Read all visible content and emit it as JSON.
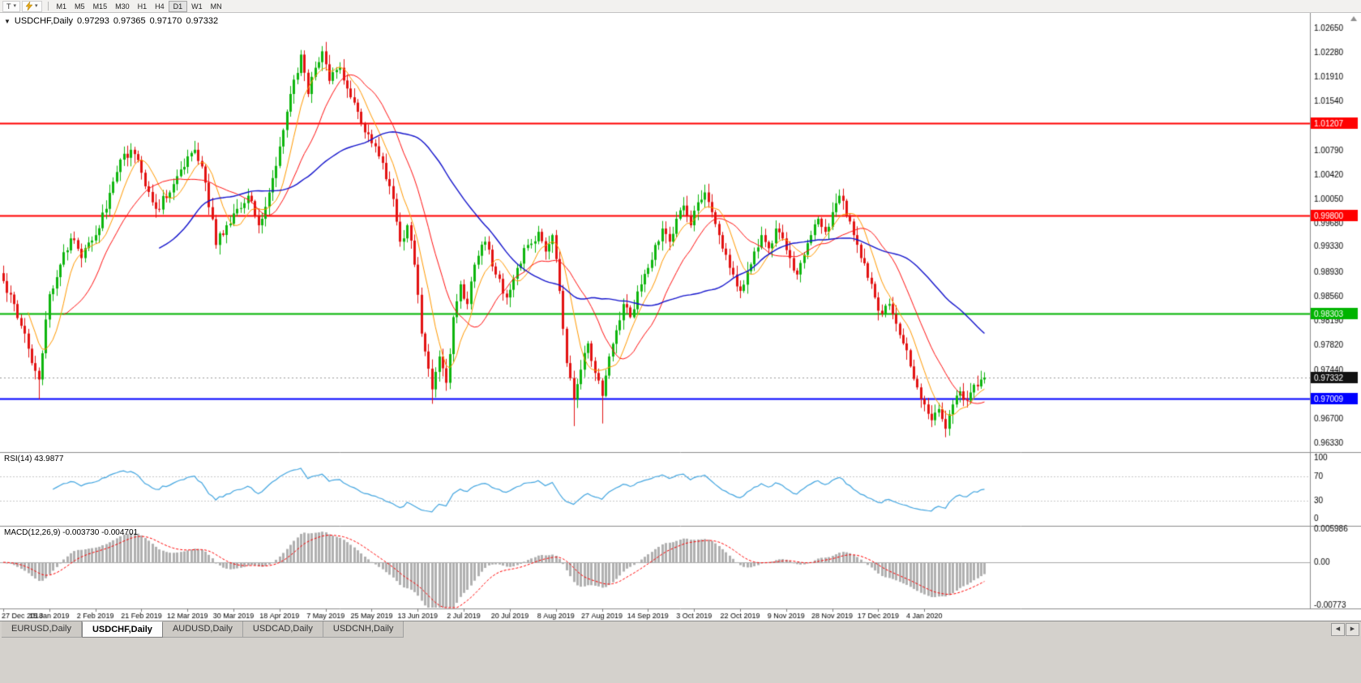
{
  "toolbar": {
    "chart_tool_label": "T",
    "caret": "▾",
    "timeframes": [
      "M1",
      "M5",
      "M15",
      "M30",
      "H1",
      "H4",
      "D1",
      "W1",
      "MN"
    ],
    "active_timeframe": "D1"
  },
  "chart_header": {
    "collapse_arrow": "▼",
    "symbol": "USDCHF,Daily",
    "open": "0.97293",
    "high": "0.97365",
    "low": "0.97170",
    "close": "0.97332"
  },
  "tabs": {
    "items": [
      "EURUSD,Daily",
      "USDCHF,Daily",
      "AUDUSD,Daily",
      "USDCAD,Daily",
      "USDCNH,Daily"
    ],
    "active": "USDCHF,Daily",
    "scroll_left": "◀",
    "scroll_right": "▶"
  },
  "chart_data": {
    "type": "candlestick",
    "symbol": "USDCHF",
    "timeframe": "Daily",
    "num_candles": 278,
    "x_tick_interval": 13,
    "x_tick_labels": [
      "27 Dec 2018",
      "15 Jan 2019",
      "2 Feb 2019",
      "21 Feb 2019",
      "12 Mar 2019",
      "30 Mar 2019",
      "18 Apr 2019",
      "7 May 2019",
      "25 May 2019",
      "13 Jun 2019",
      "2 Jul 2019",
      "20 Jul 2019",
      "8 Aug 2019",
      "27 Aug 2019",
      "14 Sep 2019",
      "3 Oct 2019",
      "22 Oct 2019",
      "9 Nov 2019",
      "28 Nov 2019",
      "17 Dec 2019",
      "4 Jan 2020"
    ],
    "y_axis": {
      "min": 0.9633,
      "max": 1.0265,
      "tick_labels": [
        "1.02650",
        "1.02280",
        "1.01910",
        "1.01540",
        "1.00790",
        "1.00420",
        "1.00050",
        "0.99680",
        "0.99330",
        "0.98930",
        "0.98560",
        "0.98190",
        "0.97820",
        "0.97440",
        "0.96700",
        "0.96330"
      ]
    },
    "candle_colors": {
      "up": "#0eb50e",
      "down": "#e21212"
    },
    "price_anchors": [
      [
        0,
        0.988
      ],
      [
        3,
        0.9845
      ],
      [
        6,
        0.98
      ],
      [
        8,
        0.9755
      ],
      [
        10,
        0.973
      ],
      [
        11,
        0.977
      ],
      [
        13,
        0.986
      ],
      [
        16,
        0.9905
      ],
      [
        19,
        0.9945
      ],
      [
        22,
        0.9915
      ],
      [
        26,
        0.995
      ],
      [
        29,
        0.999
      ],
      [
        33,
        1.0065
      ],
      [
        36,
        1.008
      ],
      [
        39,
        1.0045
      ],
      [
        43,
        0.999
      ],
      [
        47,
        1.0015
      ],
      [
        52,
        1.007
      ],
      [
        54,
        1.008
      ],
      [
        57,
        1.003
      ],
      [
        60,
        0.9935
      ],
      [
        63,
        0.9965
      ],
      [
        66,
        0.999
      ],
      [
        69,
        1.001
      ],
      [
        72,
        0.9965
      ],
      [
        75,
        1.0015
      ],
      [
        78,
        1.0085
      ],
      [
        81,
        1.0165
      ],
      [
        84,
        1.0225
      ],
      [
        86,
        1.0165
      ],
      [
        88,
        1.0205
      ],
      [
        90,
        1.023
      ],
      [
        92,
        1.0185
      ],
      [
        95,
        1.0205
      ],
      [
        98,
        1.016
      ],
      [
        101,
        1.012
      ],
      [
        104,
        1.009
      ],
      [
        107,
        1.006
      ],
      [
        110,
        1.0005
      ],
      [
        112,
        0.994
      ],
      [
        114,
        0.9965
      ],
      [
        116,
        0.9905
      ],
      [
        118,
        0.98
      ],
      [
        121,
        0.9715
      ],
      [
        123,
        0.9765
      ],
      [
        125,
        0.9725
      ],
      [
        127,
        0.9825
      ],
      [
        129,
        0.9875
      ],
      [
        131,
        0.9845
      ],
      [
        133,
        0.9905
      ],
      [
        136,
        0.994
      ],
      [
        139,
        0.989
      ],
      [
        142,
        0.9855
      ],
      [
        145,
        0.99
      ],
      [
        148,
        0.9935
      ],
      [
        151,
        0.9955
      ],
      [
        153,
        0.9925
      ],
      [
        155,
        0.995
      ],
      [
        157,
        0.9865
      ],
      [
        159,
        0.9755
      ],
      [
        161,
        0.97
      ],
      [
        163,
        0.9745
      ],
      [
        165,
        0.9785
      ],
      [
        167,
        0.974
      ],
      [
        169,
        0.9705
      ],
      [
        171,
        0.9765
      ],
      [
        173,
        0.9805
      ],
      [
        175,
        0.9845
      ],
      [
        177,
        0.9825
      ],
      [
        180,
        0.9875
      ],
      [
        182,
        0.99
      ],
      [
        184,
        0.9935
      ],
      [
        186,
        0.996
      ],
      [
        188,
        0.994
      ],
      [
        190,
        0.9975
      ],
      [
        192,
        0.9995
      ],
      [
        194,
        0.9965
      ],
      [
        196,
        1.0
      ],
      [
        198,
        1.0015
      ],
      [
        200,
        0.9985
      ],
      [
        202,
        0.995
      ],
      [
        204,
        0.992
      ],
      [
        206,
        0.989
      ],
      [
        208,
        0.9865
      ],
      [
        210,
        0.9895
      ],
      [
        212,
        0.9925
      ],
      [
        214,
        0.995
      ],
      [
        216,
        0.993
      ],
      [
        218,
        0.996
      ],
      [
        220,
        0.9945
      ],
      [
        222,
        0.9915
      ],
      [
        224,
        0.989
      ],
      [
        226,
        0.992
      ],
      [
        228,
        0.995
      ],
      [
        230,
        0.9975
      ],
      [
        232,
        0.9955
      ],
      [
        234,
        0.9985
      ],
      [
        236,
        1.001
      ],
      [
        238,
        0.998
      ],
      [
        240,
        0.995
      ],
      [
        242,
        0.9915
      ],
      [
        244,
        0.9885
      ],
      [
        246,
        0.9855
      ],
      [
        248,
        0.983
      ],
      [
        250,
        0.9845
      ],
      [
        252,
        0.9815
      ],
      [
        254,
        0.9785
      ],
      [
        256,
        0.975
      ],
      [
        258,
        0.9718
      ],
      [
        260,
        0.9692
      ],
      [
        262,
        0.9668
      ],
      [
        264,
        0.9685
      ],
      [
        266,
        0.9655
      ],
      [
        268,
        0.9692
      ],
      [
        270,
        0.9712
      ],
      [
        272,
        0.9698
      ],
      [
        274,
        0.9722
      ],
      [
        276,
        0.973
      ],
      [
        277,
        0.9733
      ]
    ],
    "spike_lows": [
      [
        10,
        0.97
      ],
      [
        121,
        0.9693
      ],
      [
        161,
        0.9659
      ],
      [
        169,
        0.9663
      ],
      [
        266,
        0.9645
      ]
    ],
    "spike_highs": [
      [
        36,
        1.009
      ],
      [
        54,
        1.0088
      ],
      [
        90,
        1.0238
      ]
    ],
    "moving_averages": [
      {
        "period": 8,
        "color": "#ff9900",
        "width": 1
      },
      {
        "period": 18,
        "color": "#ff1111",
        "width": 1
      },
      {
        "period": 45,
        "color": "#1414cc",
        "width": 1.4
      }
    ],
    "horizontal_lines": [
      {
        "price": 1.01207,
        "label": "1.01207",
        "color": "#ff0000"
      },
      {
        "price": 0.998,
        "label": "0.99800",
        "color": "#ff0000"
      },
      {
        "price": 0.98303,
        "label": "0.98303",
        "color": "#00b400"
      },
      {
        "price": 0.97009,
        "label": "0.97009",
        "color": "#0000ff"
      }
    ],
    "current_price": {
      "value": 0.97332,
      "label": "0.97332"
    },
    "indicators": [
      {
        "id": "rsi",
        "label": "RSI(14) 43.9877",
        "period": 14,
        "value": 43.9877,
        "color": "#42a5e0",
        "levels": [
          30,
          70
        ],
        "scale_ticks": [
          "100",
          "70",
          "30",
          "0"
        ]
      },
      {
        "id": "macd",
        "label": "MACD(12,26,9) -0.003730 -0.004701",
        "fast": 12,
        "slow": 26,
        "signal": 9,
        "macd_value": -0.00373,
        "signal_value": -0.004701,
        "histogram_color": "#b0b0b0",
        "signal_color": "#ff0000",
        "range": [
          -0.00773,
          0.005986
        ],
        "scale_ticks": [
          {
            "label": "0.005986",
            "value": 0.005986
          },
          {
            "label": "0.00",
            "value": 0
          },
          {
            "label": "-0.00773",
            "value": -0.00773
          }
        ]
      }
    ]
  }
}
